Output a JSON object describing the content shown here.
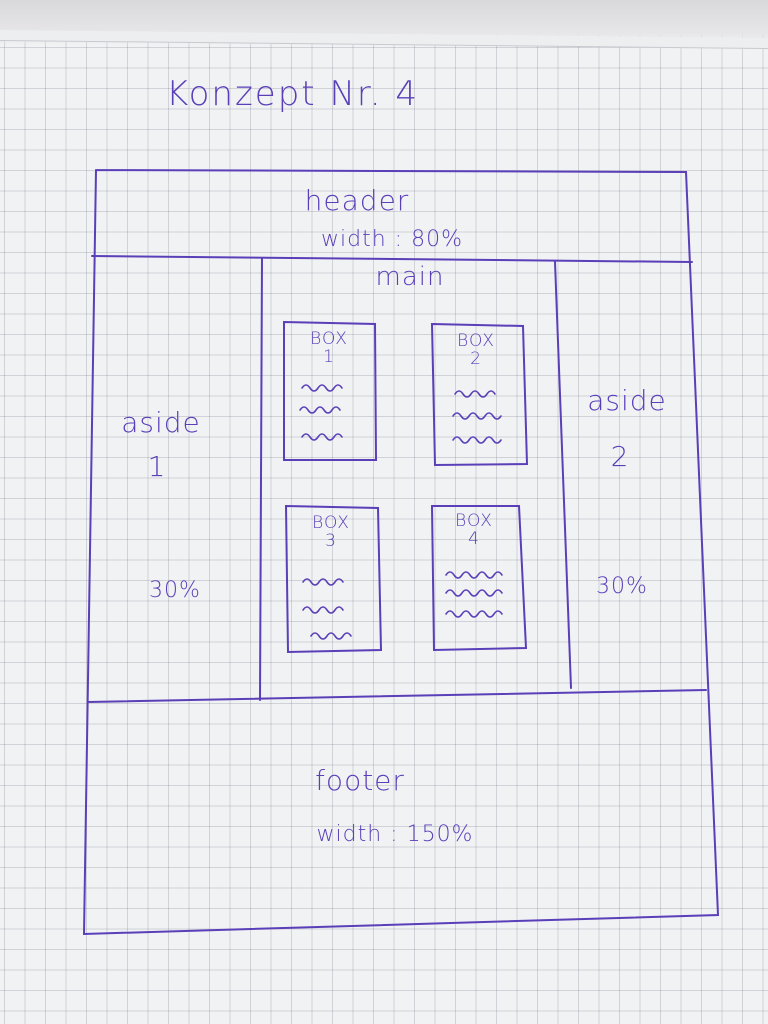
{
  "title": "Konzept Nr. 4",
  "header": {
    "label": "header",
    "width_note": "width : 80%"
  },
  "main": {
    "label": "main",
    "boxes": [
      {
        "label": "BOX",
        "number": "1"
      },
      {
        "label": "BOX",
        "number": "2"
      },
      {
        "label": "BOX",
        "number": "3"
      },
      {
        "label": "BOX",
        "number": "4"
      }
    ]
  },
  "aside1": {
    "label": "aside",
    "number": "1",
    "width_note": "30%"
  },
  "aside2": {
    "label": "aside",
    "number": "2",
    "width_note": "30%"
  },
  "footer": {
    "label": "footer",
    "width_note": "width : 150%"
  },
  "colors": {
    "ink": "#5a3fb8",
    "paper": "#f1f2f4",
    "grid": "#c3c5cf"
  }
}
